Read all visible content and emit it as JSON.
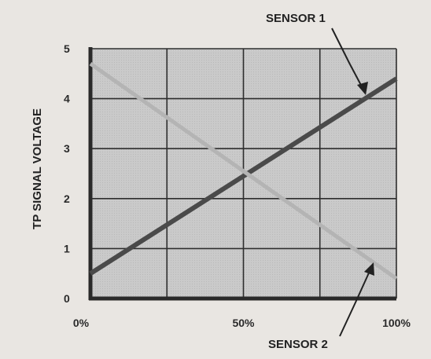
{
  "chart_data": {
    "type": "line",
    "title": "",
    "xlabel": "",
    "ylabel": "TP SIGNAL VOLTAGE",
    "x_ticks": [
      "0%",
      "50%",
      "100%"
    ],
    "y_ticks": [
      "0",
      "1",
      "2",
      "3",
      "4",
      "5"
    ],
    "xlim": [
      0,
      100
    ],
    "ylim": [
      0,
      5
    ],
    "grid": true,
    "series": [
      {
        "name": "SENSOR 1",
        "x": [
          0,
          100
        ],
        "y": [
          0.5,
          4.4
        ],
        "color": "#4a4a4a"
      },
      {
        "name": "SENSOR 2",
        "x": [
          0,
          100
        ],
        "y": [
          4.7,
          0.4
        ],
        "color": "#b4b4b4"
      }
    ],
    "annotations": [
      {
        "text": "SENSOR 1",
        "series": 0
      },
      {
        "text": "SENSOR 2",
        "series": 1
      }
    ],
    "colors": {
      "plot_background": "#c9c9c9",
      "grid": "#2e2e2e",
      "axis": "#2a2a2a"
    }
  }
}
